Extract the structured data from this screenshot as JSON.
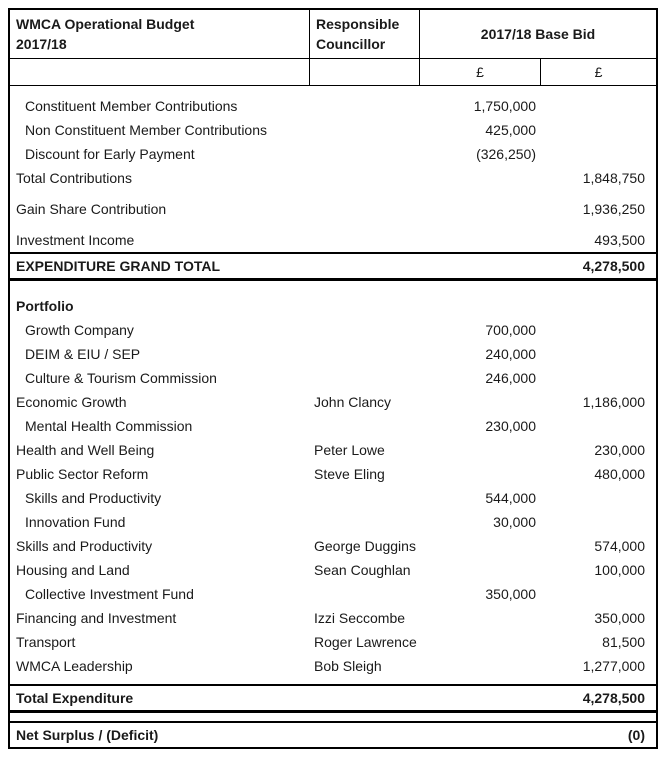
{
  "header": {
    "title_line1": "WMCA Operational Budget",
    "title_line2": "2017/18",
    "councillor_line1": "Responsible",
    "councillor_line2": "Councillor",
    "base_bid": "2017/18 Base Bid",
    "currency_detail": "£",
    "currency_total": "£"
  },
  "rows": [
    {
      "kind": "sub-item",
      "label": "Constituent Member Contributions",
      "detail": "1,750,000"
    },
    {
      "kind": "sub-item",
      "label": "Non Constituent Member Contributions",
      "detail": "425,000"
    },
    {
      "kind": "sub-item",
      "label": "Discount for Early Payment",
      "detail": "(326,250)"
    },
    {
      "kind": "line",
      "label": "Total Contributions",
      "total": "1,848,750"
    },
    {
      "kind": "spacer-small"
    },
    {
      "kind": "line",
      "label": "Gain Share Contribution",
      "total": "1,936,250"
    },
    {
      "kind": "spacer-small"
    },
    {
      "kind": "line",
      "label": "Investment Income",
      "total": "493,500"
    },
    {
      "kind": "grand-total",
      "label": "EXPENDITURE GRAND TOTAL",
      "total": "4,278,500"
    },
    {
      "kind": "spacer"
    },
    {
      "kind": "section",
      "label": "Portfolio"
    },
    {
      "kind": "sub-item",
      "label": "Growth Company",
      "detail": "700,000"
    },
    {
      "kind": "sub-item",
      "label": "DEIM & EIU / SEP",
      "detail": "240,000"
    },
    {
      "kind": "sub-item",
      "label": "Culture & Tourism Commission",
      "detail": "246,000"
    },
    {
      "kind": "line",
      "label": "Economic Growth",
      "councillor": "John Clancy",
      "total": "1,186,000"
    },
    {
      "kind": "sub-item",
      "label": "Mental Health Commission",
      "detail": "230,000"
    },
    {
      "kind": "line",
      "label": "Health and Well Being",
      "councillor": "Peter Lowe",
      "total": "230,000"
    },
    {
      "kind": "line",
      "label": "Public Sector Reform",
      "councillor": "Steve Eling",
      "total": "480,000"
    },
    {
      "kind": "sub-item",
      "label": "Skills and Productivity",
      "detail": "544,000"
    },
    {
      "kind": "sub-item",
      "label": "Innovation Fund",
      "detail": "30,000"
    },
    {
      "kind": "line",
      "label": "Skills and Productivity",
      "councillor": "George Duggins",
      "total": "574,000"
    },
    {
      "kind": "line",
      "label": "Housing and Land",
      "councillor": "Sean Coughlan",
      "total": "100,000"
    },
    {
      "kind": "sub-item",
      "label": "Collective Investment Fund",
      "detail": "350,000"
    },
    {
      "kind": "line",
      "label": "Financing and Investment",
      "councillor": "Izzi Seccombe",
      "total": "350,000"
    },
    {
      "kind": "line",
      "label": "Transport",
      "councillor": "Roger Lawrence",
      "total": "81,500"
    },
    {
      "kind": "line",
      "label": "WMCA Leadership",
      "councillor": "Bob Sleigh",
      "total": "1,277,000"
    },
    {
      "kind": "spacer-tiny"
    },
    {
      "kind": "total",
      "label": "Total Expenditure",
      "total": "4,278,500"
    },
    {
      "kind": "gap"
    },
    {
      "kind": "net",
      "label": "Net Surplus / (Deficit)",
      "total": "(0)"
    }
  ]
}
